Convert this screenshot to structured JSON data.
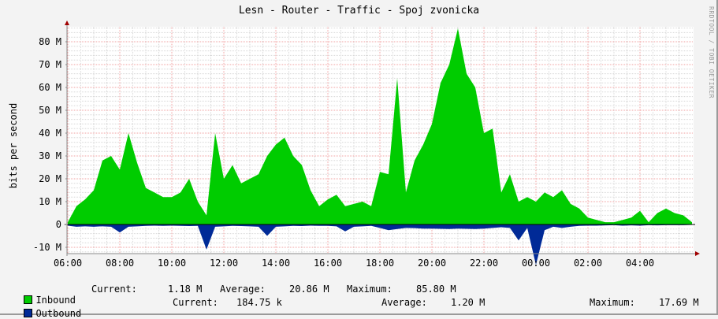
{
  "chart_data": {
    "type": "area",
    "title": "Lesn - Router - Traffic - Spoj zvonicka",
    "ylabel": "bits per second",
    "xlabel": "",
    "watermark": "RRDTOOL / TOBI OETIKER",
    "ylim": [
      -12.8,
      87
    ],
    "yunit": "M",
    "grid": true,
    "y_ticks": [
      "-10 M",
      "0",
      "10 M",
      "20 M",
      "30 M",
      "40 M",
      "50 M",
      "60 M",
      "70 M",
      "80 M"
    ],
    "y_tick_values": [
      -10,
      0,
      10,
      20,
      30,
      40,
      50,
      60,
      70,
      80
    ],
    "x_ticks": [
      "06:00",
      "08:00",
      "10:00",
      "12:00",
      "14:00",
      "16:00",
      "18:00",
      "20:00",
      "22:00",
      "00:00",
      "02:00",
      "04:00"
    ],
    "x": [
      "06:00",
      "06:20",
      "06:40",
      "07:00",
      "07:20",
      "07:40",
      "08:00",
      "08:20",
      "08:40",
      "09:00",
      "09:20",
      "09:40",
      "10:00",
      "10:20",
      "10:40",
      "11:00",
      "11:20",
      "11:40",
      "12:00",
      "12:20",
      "12:40",
      "13:00",
      "13:20",
      "13:40",
      "14:00",
      "14:20",
      "14:40",
      "15:00",
      "15:20",
      "15:40",
      "16:00",
      "16:20",
      "16:40",
      "17:00",
      "17:20",
      "17:40",
      "18:00",
      "18:20",
      "18:40",
      "19:00",
      "19:20",
      "19:40",
      "20:00",
      "20:20",
      "20:40",
      "21:00",
      "21:20",
      "21:40",
      "22:00",
      "22:20",
      "22:40",
      "23:00",
      "23:20",
      "23:40",
      "00:00",
      "00:20",
      "00:40",
      "01:00",
      "01:20",
      "01:40",
      "02:00",
      "02:20",
      "02:40",
      "03:00",
      "03:20",
      "03:40",
      "04:00",
      "04:20",
      "04:40",
      "05:00",
      "05:20",
      "05:40",
      "06:00"
    ],
    "series": [
      {
        "name": "Inbound",
        "color": "#00cc00",
        "values": [
          1,
          8,
          11,
          15,
          28,
          30,
          24,
          40,
          27,
          16,
          14,
          12,
          12,
          14,
          20,
          10,
          4,
          40,
          20,
          26,
          18,
          20,
          22,
          30,
          35,
          38,
          30,
          26,
          15,
          8,
          11,
          13,
          8,
          9,
          10,
          8,
          23,
          22,
          64,
          14,
          28,
          35,
          44,
          62,
          70,
          85.8,
          66,
          60,
          40,
          42,
          14,
          22,
          10,
          12,
          10,
          14,
          12,
          15,
          9,
          7,
          3,
          2,
          1,
          1,
          2,
          3,
          6,
          1,
          5,
          7,
          5,
          4,
          1
        ]
      },
      {
        "name": "Outbound",
        "color": "#002a97",
        "values": [
          -0.5,
          -1,
          -0.8,
          -1,
          -0.8,
          -1,
          -3.5,
          -1,
          -0.8,
          -0.6,
          -0.5,
          -0.6,
          -0.5,
          -0.6,
          -0.7,
          -0.6,
          -11,
          -1,
          -0.8,
          -0.6,
          -0.7,
          -0.8,
          -1,
          -5,
          -1,
          -0.8,
          -0.6,
          -0.7,
          -0.5,
          -0.6,
          -0.6,
          -0.8,
          -3,
          -1,
          -0.8,
          -0.6,
          -1.5,
          -2.5,
          -2,
          -1.5,
          -1.6,
          -1.8,
          -1.8,
          -1.9,
          -2,
          -1.8,
          -1.9,
          -2,
          -1.8,
          -1.5,
          -1.2,
          -1.5,
          -7,
          -1.5,
          -17.69,
          -2.5,
          -1,
          -1.5,
          -1,
          -0.6,
          -0.5,
          -0.5,
          -0.4,
          -0.3,
          -0.5,
          -0.4,
          -0.5,
          -0.3,
          -0.4,
          -0.3,
          -0.3,
          -0.3,
          -0.18
        ]
      }
    ]
  },
  "legend": {
    "inbound": {
      "label": "Inbound",
      "current_label": "Current:",
      "current": "1.18 M",
      "average_label": "Average:",
      "average": "20.86 M",
      "maximum_label": "Maximum:",
      "maximum": "85.80 M",
      "color": "#00cc00"
    },
    "outbound": {
      "label": "Outbound",
      "current_label": "Current:",
      "current": "184.75 k",
      "average_label": "Average:",
      "average": "1.20 M",
      "maximum_label": "Maximum:",
      "maximum": "17.69 M",
      "color": "#002a97"
    }
  }
}
